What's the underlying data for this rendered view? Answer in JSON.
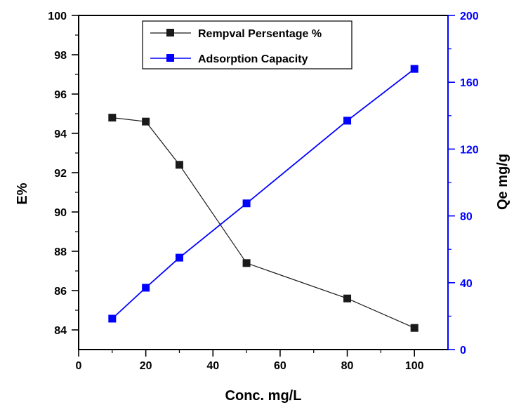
{
  "chart_data": {
    "type": "line",
    "xlabel": "Conc. mg/L",
    "ylabel_left": "E%",
    "ylabel_right": "Qe mg/g",
    "xlim": [
      0,
      110
    ],
    "ylim_left": [
      83,
      100
    ],
    "ylim_right": [
      0,
      200
    ],
    "xticks": [
      0,
      20,
      40,
      60,
      80,
      100
    ],
    "yticks_left": [
      84,
      86,
      88,
      90,
      92,
      94,
      96,
      98,
      100
    ],
    "yticks_right": [
      0,
      40,
      80,
      120,
      160,
      200
    ],
    "grid": false,
    "legend_position": "top-center",
    "series": [
      {
        "name": "Rempval Persentage %",
        "axis": "left",
        "color": "#1a1a1a",
        "marker": "square",
        "x": [
          10,
          20,
          30,
          50,
          80,
          100
        ],
        "y": [
          94.8,
          94.6,
          92.4,
          87.4,
          85.6,
          84.1
        ]
      },
      {
        "name": "Adsorption Capacity",
        "axis": "right",
        "color": "#0000ff",
        "marker": "square",
        "x": [
          10,
          20,
          30,
          50,
          80,
          100
        ],
        "y": [
          18.5,
          37,
          55,
          87.5,
          137,
          168
        ]
      }
    ]
  }
}
